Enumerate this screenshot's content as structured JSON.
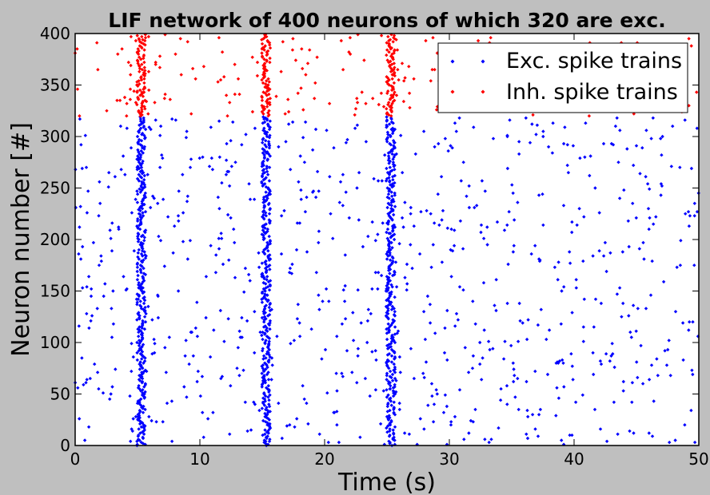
{
  "chart_data": {
    "type": "scatter",
    "title": "LIF network of 400 neurons of which 320 are exc.",
    "xlabel": "Time (s)",
    "ylabel": "Neuron number [#]",
    "xlim": [
      0,
      50
    ],
    "ylim": [
      0,
      400
    ],
    "xticks": [
      0,
      10,
      20,
      30,
      40,
      50
    ],
    "yticks": [
      0,
      50,
      100,
      150,
      200,
      250,
      300,
      350,
      400
    ],
    "grid": false,
    "legend_position": "top-right",
    "n_neurons": 400,
    "n_excitatory": 320,
    "synchronous_bursts_s": [
      5.3,
      15.3,
      25.3
    ],
    "series": [
      {
        "name": "Exc. spike trains",
        "color": "#0000ff",
        "neuron_range": [
          0,
          319
        ]
      },
      {
        "name": "Inh. spike trains",
        "color": "#ff0000",
        "neuron_range": [
          320,
          399
        ]
      }
    ]
  }
}
